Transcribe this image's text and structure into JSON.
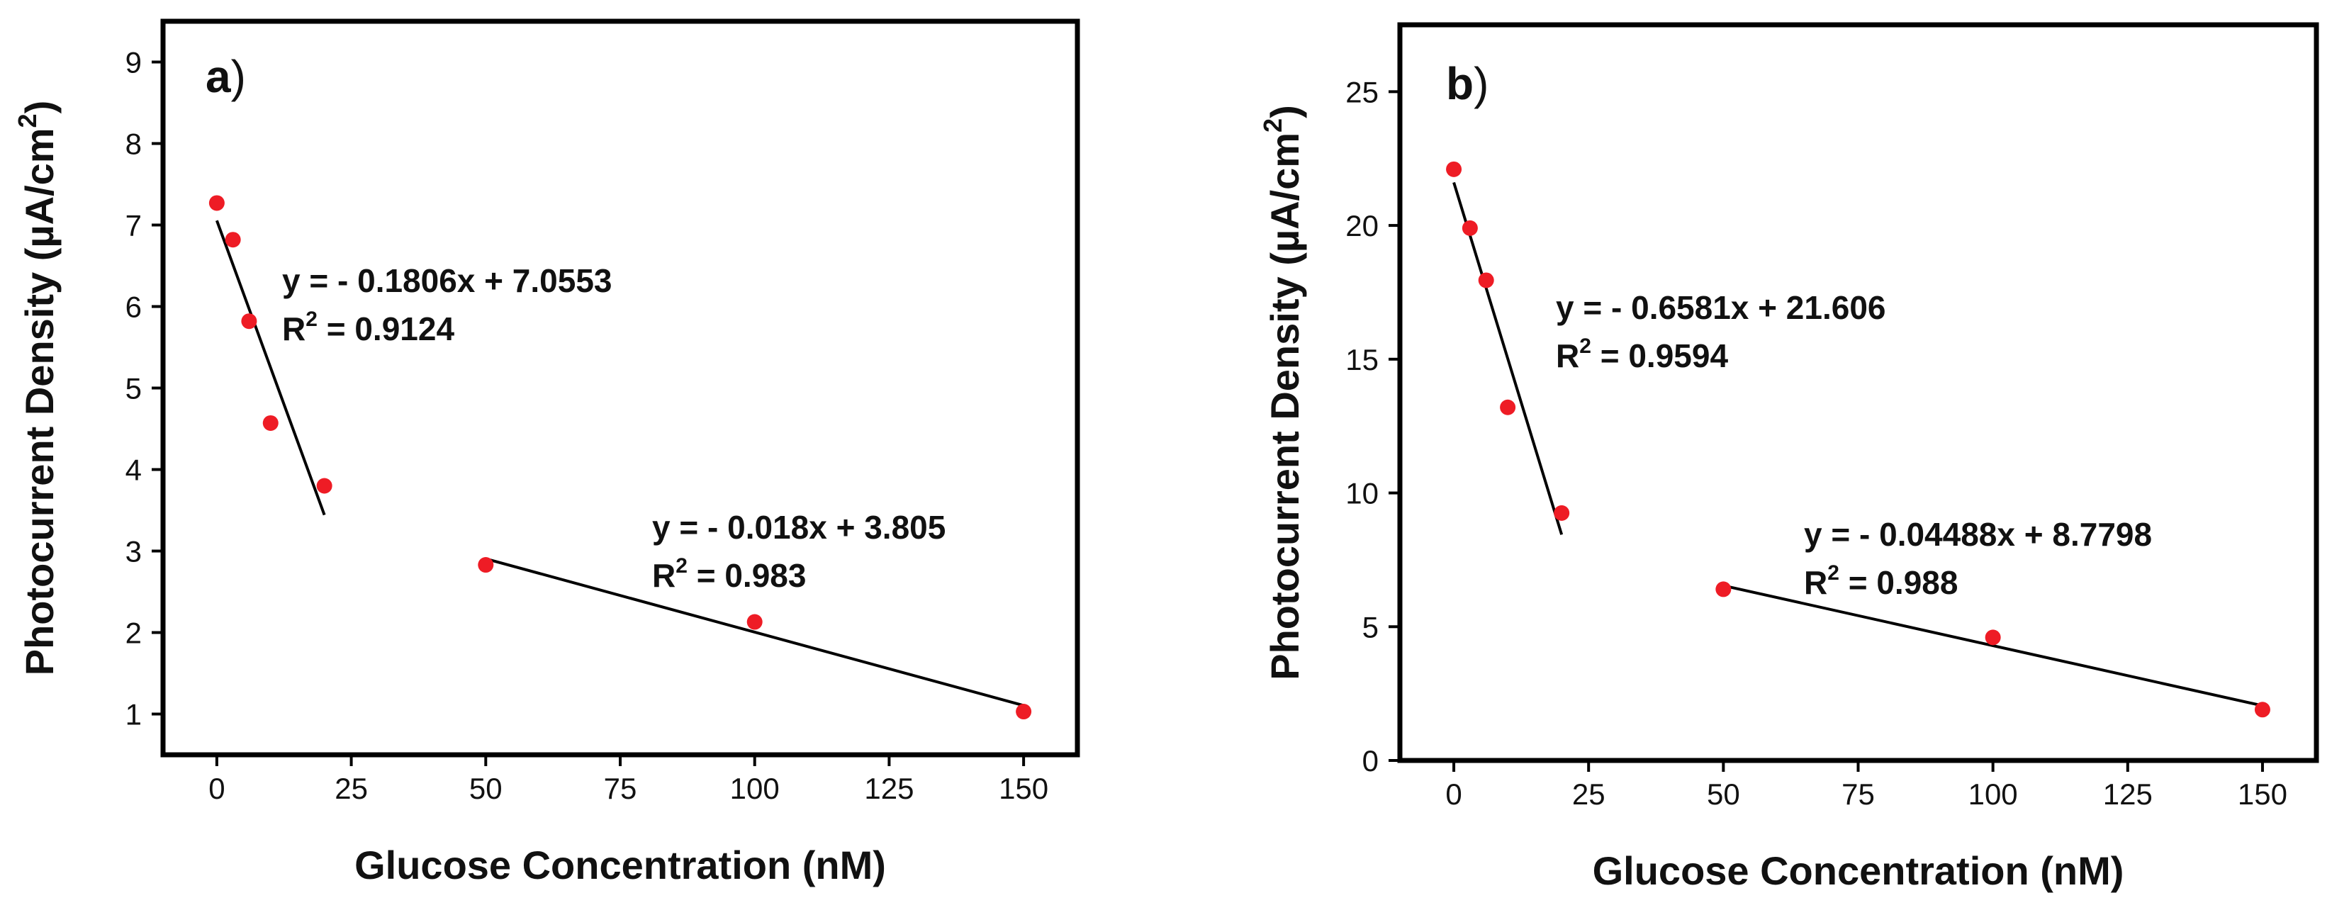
{
  "chart_data": [
    {
      "type": "scatter",
      "panel": "a",
      "panel_label": "a",
      "panel_paren": ")",
      "xlabel": "Glucose Concentration (nM)",
      "ylabel_main": "Photocurrent Density (µA/cm",
      "ylabel_sup": "2",
      "ylabel_end": ")",
      "xlim": [
        -10,
        160
      ],
      "ylim": [
        0.5,
        9.5
      ],
      "xticks": [
        0,
        25,
        50,
        75,
        100,
        125,
        150
      ],
      "yticks": [
        1,
        2,
        3,
        4,
        5,
        6,
        7,
        8,
        9
      ],
      "marker_color": "#ee1c25",
      "points": {
        "x": [
          0,
          3,
          6,
          10,
          20,
          50,
          100,
          150
        ],
        "y": [
          7.27,
          6.82,
          5.82,
          4.57,
          3.8,
          2.83,
          2.13,
          1.03
        ]
      },
      "fits": [
        {
          "x_range": [
            0,
            20
          ],
          "slope": -0.1806,
          "intercept": 7.0553,
          "equation": "y = - 0.1806x + 7.0553",
          "r2_prefix": "R",
          "r2_sup": "2",
          "r2_value": " = 0.9124"
        },
        {
          "x_range": [
            50,
            150
          ],
          "slope": -0.018,
          "intercept": 3.805,
          "equation": "y = - 0.018x + 3.805",
          "r2_prefix": "R",
          "r2_sup": "2",
          "r2_value": " = 0.983"
        }
      ]
    },
    {
      "type": "scatter",
      "panel": "b",
      "panel_label": "b",
      "panel_paren": ")",
      "xlabel": "Glucose Concentration (nM)",
      "ylabel_main": "Photocurrent Density (µA/cm",
      "ylabel_sup": "2",
      "ylabel_end": ")",
      "xlim": [
        -10,
        160
      ],
      "ylim": [
        0,
        27.5
      ],
      "xticks": [
        0,
        25,
        50,
        75,
        100,
        125,
        150
      ],
      "yticks": [
        0,
        5,
        10,
        15,
        20,
        25
      ],
      "marker_color": "#ee1c25",
      "points": {
        "x": [
          0,
          3,
          6,
          10,
          20,
          50,
          100,
          150
        ],
        "y": [
          22.1,
          19.9,
          17.95,
          13.2,
          9.25,
          6.4,
          4.6,
          1.9
        ]
      },
      "fits": [
        {
          "x_range": [
            0,
            20
          ],
          "slope": -0.6581,
          "intercept": 21.606,
          "equation": "y = - 0.6581x + 21.606",
          "r2_prefix": "R",
          "r2_sup": "2",
          "r2_value": " = 0.9594"
        },
        {
          "x_range": [
            50,
            150
          ],
          "slope": -0.04488,
          "intercept": 8.7798,
          "equation": "y = - 0.04488x + 8.7798",
          "r2_prefix": "R",
          "r2_sup": "2",
          "r2_value": " = 0.988"
        }
      ]
    }
  ]
}
